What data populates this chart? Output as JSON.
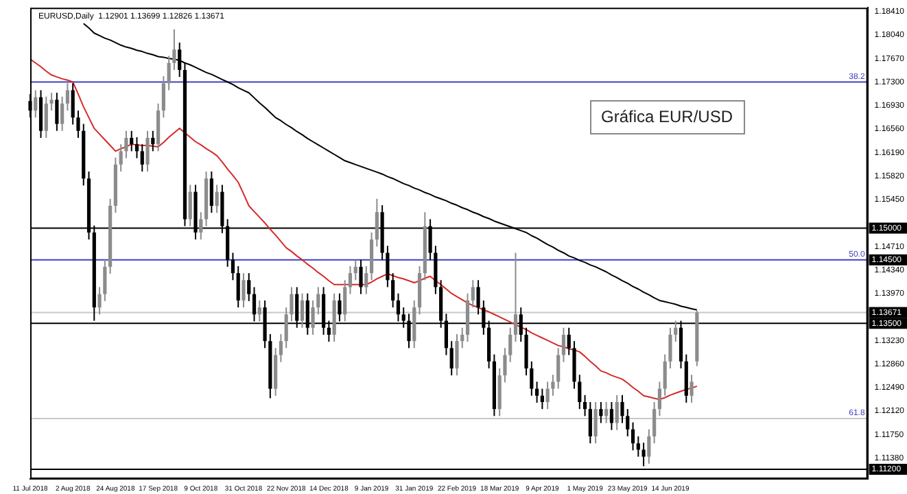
{
  "chart_data": {
    "type": "candlestick",
    "subtitle": "EURUSD,Daily  1.12901 1.13699 1.12826 1.13671",
    "annotations": [
      "Gráfica EUR/USD",
      {
        "text": "38.2",
        "y": 1.173
      },
      {
        "text": "50.0",
        "y": 1.145
      },
      {
        "text": "61.8",
        "y": 1.12
      }
    ],
    "colors": [
      "#000000",
      "#8c8c8c",
      "#000000",
      "#8c8c8c",
      "#8c8c8c",
      "#000000",
      "#8c8c8c",
      "#8c8c8c",
      "#000000",
      "#000000",
      "#000000",
      "#000000",
      "#000000",
      "#8c8c8c",
      "#8c8c8c",
      "#8c8c8c",
      "#8c8c8c",
      "#8c8c8c",
      "#8c8c8c",
      "#000000",
      "#000000",
      "#000000",
      "#8c8c8c",
      "#000000",
      "#8c8c8c",
      "#8c8c8c",
      "#8c8c8c",
      "#8c8c8c",
      "#000000",
      "#000000",
      "#8c8c8c",
      "#000000",
      "#8c8c8c",
      "#8c8c8c",
      "#000000",
      "#8c8c8c",
      "#000000",
      "#000000",
      "#000000",
      "#000000",
      "#8c8c8c",
      "#000000",
      "#000000",
      "#8c8c8c",
      "#000000",
      "#000000",
      "#8c8c8c",
      "#8c8c8c",
      "#8c8c8c",
      "#8c8c8c",
      "#000000",
      "#8c8c8c",
      "#000000",
      "#8c8c8c",
      "#8c8c8c",
      "#000000",
      "#000000",
      "#8c8c8c",
      "#000000",
      "#8c8c8c",
      "#8c8c8c",
      "#8c8c8c",
      "#000000",
      "#8c8c8c",
      "#8c8c8c",
      "#8c8c8c",
      "#000000",
      "#000000",
      "#000000",
      "#000000",
      "#000000",
      "#000000",
      "#8c8c8c",
      "#8c8c8c",
      "#8c8c8c",
      "#000000",
      "#000000",
      "#000000",
      "#000000",
      "#000000",
      "#8c8c8c",
      "#8c8c8c",
      "#8c8c8c",
      "#8c8c8c",
      "#000000",
      "#000000",
      "#000000",
      "#000000",
      "#8c8c8c",
      "#8c8c8c",
      "#8c8c8c",
      "#8c8c8c",
      "#000000",
      "#000000",
      "#000000",
      "#000000",
      "#000000",
      "#8c8c8c",
      "#8c8c8c",
      "#8c8c8c",
      "#8c8c8c",
      "#000000",
      "#000000",
      "#000000",
      "#000000",
      "#000000",
      "#8c8c8c",
      "#000000",
      "#8c8c8c",
      "#000000",
      "#8c8c8c",
      "#000000",
      "#000000",
      "#000000",
      "#000000",
      "#000000",
      "#8c8c8c",
      "#8c8c8c",
      "#8c8c8c",
      "#8c8c8c",
      "#8c8c8c",
      "#8c8c8c",
      "#000000",
      "#000000",
      "#8c8c8c",
      "#8c8c8c",
      null,
      null,
      null,
      null,
      null,
      null,
      null,
      null,
      null,
      null,
      null,
      null,
      null,
      null,
      null,
      null,
      null,
      null,
      null,
      null,
      null,
      null,
      null,
      null,
      null,
      null,
      null,
      null,
      null,
      null,
      null,
      null
    ],
    "categories": [
      "11 Jul 2018",
      null,
      null,
      null,
      null,
      null,
      null,
      null,
      "2 Aug 2018",
      null,
      null,
      null,
      null,
      null,
      null,
      null,
      "24 Aug 2018",
      null,
      null,
      null,
      null,
      null,
      null,
      null,
      "17 Sep 2018",
      null,
      null,
      null,
      null,
      null,
      null,
      null,
      "9 Oct 2018",
      null,
      null,
      null,
      null,
      null,
      null,
      null,
      "31 Oct 2018",
      null,
      null,
      null,
      null,
      null,
      null,
      null,
      "22 Nov 2018",
      null,
      null,
      null,
      null,
      null,
      null,
      null,
      "14 Dec 2018",
      null,
      null,
      null,
      null,
      null,
      null,
      null,
      "9 Jan 2019",
      null,
      null,
      null,
      null,
      null,
      null,
      null,
      "31 Jan 2019",
      null,
      null,
      null,
      null,
      null,
      null,
      null,
      "22 Feb 2019",
      null,
      null,
      null,
      null,
      null,
      null,
      null,
      "18 Mar 2019",
      null,
      null,
      null,
      null,
      null,
      null,
      null,
      "9 Apr 2019",
      null,
      null,
      null,
      null,
      null,
      null,
      null,
      "1 May 2019",
      null,
      null,
      null,
      null,
      null,
      null,
      null,
      "23 May 2019",
      null,
      null,
      null,
      null,
      null,
      null,
      null,
      "14 Jun 2019",
      null,
      null,
      null,
      null,
      null,
      null,
      null,
      null,
      null,
      null,
      null,
      null,
      null,
      null,
      null,
      null,
      null,
      null,
      null,
      null,
      null,
      null,
      null,
      null,
      null,
      null,
      null,
      null,
      null,
      null,
      null,
      null,
      null,
      null,
      null,
      null,
      null
    ],
    "ohlc": [
      [
        1.17,
        1.1711,
        1.1674,
        1.1685
      ],
      [
        1.1685,
        1.1717,
        1.1674,
        1.1706
      ],
      [
        1.1706,
        1.1717,
        1.1642,
        1.1653
      ],
      [
        1.1653,
        1.1707,
        1.1642,
        1.1696
      ],
      [
        1.1696,
        1.1713,
        1.1685,
        1.1702
      ],
      [
        1.1702,
        1.1713,
        1.1653,
        1.1664
      ],
      [
        1.1664,
        1.1707,
        1.1653,
        1.1696
      ],
      [
        1.1696,
        1.1728,
        1.1685,
        1.1717
      ],
      [
        1.1717,
        1.1728,
        1.1663,
        1.1674
      ],
      [
        1.1674,
        1.1685,
        1.1642,
        1.1653
      ],
      [
        1.1653,
        1.1664,
        1.1567,
        1.1578
      ],
      [
        1.1578,
        1.1589,
        1.1482,
        1.1493
      ],
      [
        1.1493,
        1.1504,
        1.1354,
        1.1375
      ],
      [
        1.1375,
        1.1407,
        1.1364,
        1.1396
      ],
      [
        1.1396,
        1.145,
        1.1385,
        1.1439
      ],
      [
        1.1439,
        1.1546,
        1.1428,
        1.1535
      ],
      [
        1.1535,
        1.1611,
        1.1524,
        1.16
      ],
      [
        1.16,
        1.1632,
        1.1589,
        1.1621
      ],
      [
        1.1621,
        1.1653,
        1.161,
        1.1642
      ],
      [
        1.1642,
        1.1653,
        1.1621,
        1.1632
      ],
      [
        1.1632,
        1.1643,
        1.161,
        1.1621
      ],
      [
        1.1621,
        1.1632,
        1.1589,
        1.16
      ],
      [
        1.16,
        1.1653,
        1.1589,
        1.1642
      ],
      [
        1.1642,
        1.1653,
        1.1621,
        1.1632
      ],
      [
        1.1632,
        1.1696,
        1.1621,
        1.1685
      ],
      [
        1.1685,
        1.1739,
        1.1674,
        1.1728
      ],
      [
        1.1728,
        1.1771,
        1.1717,
        1.176
      ],
      [
        1.176,
        1.1813,
        1.1749,
        1.1781
      ],
      [
        1.1781,
        1.1792,
        1.1738,
        1.1749
      ],
      [
        1.1749,
        1.176,
        1.1503,
        1.1514
      ],
      [
        1.1514,
        1.1568,
        1.1503,
        1.1557
      ],
      [
        1.1557,
        1.1568,
        1.1482,
        1.1493
      ],
      [
        1.1493,
        1.1525,
        1.1482,
        1.1514
      ],
      [
        1.1514,
        1.1589,
        1.1503,
        1.1578
      ],
      [
        1.1578,
        1.1589,
        1.1524,
        1.1535
      ],
      [
        1.1535,
        1.1568,
        1.1524,
        1.1557
      ],
      [
        1.1557,
        1.1568,
        1.1492,
        1.1503
      ],
      [
        1.1503,
        1.1514,
        1.1439,
        1.145
      ],
      [
        1.145,
        1.1461,
        1.1418,
        1.1429
      ],
      [
        1.1429,
        1.144,
        1.1375,
        1.1386
      ],
      [
        1.1386,
        1.1429,
        1.1375,
        1.1418
      ],
      [
        1.1418,
        1.1429,
        1.1385,
        1.1396
      ],
      [
        1.1396,
        1.1407,
        1.1353,
        1.1364
      ],
      [
        1.1364,
        1.1386,
        1.1353,
        1.1375
      ],
      [
        1.1375,
        1.1386,
        1.1311,
        1.1322
      ],
      [
        1.1322,
        1.1333,
        1.1232,
        1.1247
      ],
      [
        1.1247,
        1.1311,
        1.1236,
        1.13
      ],
      [
        1.13,
        1.1333,
        1.1289,
        1.1322
      ],
      [
        1.1322,
        1.1375,
        1.1311,
        1.1364
      ],
      [
        1.1364,
        1.1407,
        1.1353,
        1.1396
      ],
      [
        1.1396,
        1.1407,
        1.1343,
        1.1354
      ],
      [
        1.1354,
        1.1397,
        1.1343,
        1.1386
      ],
      [
        1.1386,
        1.1397,
        1.1332,
        1.1343
      ],
      [
        1.1343,
        1.1386,
        1.1332,
        1.1375
      ],
      [
        1.1375,
        1.1407,
        1.1364,
        1.1396
      ],
      [
        1.1396,
        1.1407,
        1.1332,
        1.1343
      ],
      [
        1.1343,
        1.1354,
        1.1321,
        1.1332
      ],
      [
        1.1332,
        1.1397,
        1.1321,
        1.1386
      ],
      [
        1.1386,
        1.1397,
        1.1353,
        1.1364
      ],
      [
        1.1364,
        1.1418,
        1.1353,
        1.1407
      ],
      [
        1.1407,
        1.144,
        1.1396,
        1.1429
      ],
      [
        1.1429,
        1.145,
        1.1418,
        1.1439
      ],
      [
        1.1439,
        1.145,
        1.1396,
        1.1407
      ],
      [
        1.1407,
        1.144,
        1.1396,
        1.1429
      ],
      [
        1.1429,
        1.1493,
        1.1418,
        1.1482
      ],
      [
        1.1482,
        1.1546,
        1.1471,
        1.1525
      ],
      [
        1.1525,
        1.1536,
        1.145,
        1.1461
      ],
      [
        1.1461,
        1.1472,
        1.1407,
        1.1418
      ],
      [
        1.1418,
        1.1429,
        1.1375,
        1.1386
      ],
      [
        1.1386,
        1.1397,
        1.1353,
        1.1364
      ],
      [
        1.1364,
        1.1375,
        1.1343,
        1.1354
      ],
      [
        1.1354,
        1.1365,
        1.1311,
        1.1322
      ],
      [
        1.1322,
        1.1386,
        1.1311,
        1.1375
      ],
      [
        1.1375,
        1.144,
        1.1364,
        1.1429
      ],
      [
        1.1429,
        1.1525,
        1.1418,
        1.1503
      ],
      [
        1.1503,
        1.1514,
        1.145,
        1.1461
      ],
      [
        1.1461,
        1.1472,
        1.1396,
        1.1407
      ],
      [
        1.1407,
        1.1418,
        1.1343,
        1.1354
      ],
      [
        1.1354,
        1.1365,
        1.13,
        1.1311
      ],
      [
        1.1311,
        1.1322,
        1.1268,
        1.1279
      ],
      [
        1.1279,
        1.1333,
        1.1268,
        1.1322
      ],
      [
        1.1322,
        1.1343,
        1.1311,
        1.1332
      ],
      [
        1.1332,
        1.1397,
        1.1321,
        1.1386
      ],
      [
        1.1386,
        1.1418,
        1.1375,
        1.1407
      ],
      [
        1.1407,
        1.1418,
        1.1364,
        1.1375
      ],
      [
        1.1375,
        1.1386,
        1.1332,
        1.1343
      ],
      [
        1.1343,
        1.1354,
        1.1279,
        1.129
      ],
      [
        1.129,
        1.1301,
        1.1204,
        1.1215
      ],
      [
        1.1215,
        1.1279,
        1.1204,
        1.1268
      ],
      [
        1.1268,
        1.1311,
        1.1257,
        1.13
      ],
      [
        1.13,
        1.1343,
        1.1289,
        1.1332
      ],
      [
        1.1332,
        1.1461,
        1.1321,
        1.1364
      ],
      [
        1.1364,
        1.1375,
        1.1321,
        1.1332
      ],
      [
        1.1332,
        1.1343,
        1.1268,
        1.1279
      ],
      [
        1.1279,
        1.129,
        1.1236,
        1.1247
      ],
      [
        1.1247,
        1.1258,
        1.1225,
        1.1236
      ],
      [
        1.1236,
        1.1247,
        1.1215,
        1.1226
      ],
      [
        1.1226,
        1.1258,
        1.1215,
        1.1247
      ],
      [
        1.1247,
        1.1269,
        1.1236,
        1.1258
      ],
      [
        1.1258,
        1.1311,
        1.1247,
        1.13
      ],
      [
        1.13,
        1.1343,
        1.1289,
        1.1332
      ],
      [
        1.1332,
        1.1343,
        1.13,
        1.1311
      ],
      [
        1.1311,
        1.1322,
        1.1247,
        1.1258
      ],
      [
        1.1258,
        1.1269,
        1.1215,
        1.1226
      ],
      [
        1.1226,
        1.1237,
        1.1204,
        1.1215
      ],
      [
        1.1215,
        1.1226,
        1.1161,
        1.1172
      ],
      [
        1.1172,
        1.1226,
        1.1161,
        1.1215
      ],
      [
        1.1215,
        1.1226,
        1.1193,
        1.1204
      ],
      [
        1.1204,
        1.1226,
        1.1193,
        1.1215
      ],
      [
        1.1215,
        1.1226,
        1.1182,
        1.1193
      ],
      [
        1.1193,
        1.1237,
        1.1182,
        1.1226
      ],
      [
        1.1226,
        1.1237,
        1.1193,
        1.1204
      ],
      [
        1.1204,
        1.1215,
        1.1172,
        1.1183
      ],
      [
        1.1183,
        1.1194,
        1.115,
        1.1161
      ],
      [
        1.1161,
        1.1172,
        1.114,
        1.1151
      ],
      [
        1.1151,
        1.1162,
        1.1125,
        1.114
      ],
      [
        1.114,
        1.1183,
        1.1129,
        1.1172
      ],
      [
        1.1172,
        1.1226,
        1.1161,
        1.1215
      ],
      [
        1.1215,
        1.1258,
        1.1204,
        1.1247
      ],
      [
        1.1247,
        1.1301,
        1.1236,
        1.129
      ],
      [
        1.129,
        1.1343,
        1.1279,
        1.1332
      ],
      [
        1.1332,
        1.1354,
        1.1321,
        1.1343
      ],
      [
        1.1343,
        1.1354,
        1.1279,
        1.129
      ],
      [
        1.129,
        1.1301,
        1.1225,
        1.1236
      ],
      [
        1.1236,
        1.1269,
        1.1225,
        1.1258
      ],
      [
        1.12901,
        1.13699,
        1.12826,
        1.13671
      ],
      null,
      null,
      null,
      null,
      null,
      null,
      null,
      null,
      null,
      null,
      null,
      null,
      null,
      null,
      null,
      null,
      null,
      null,
      null,
      null,
      null,
      null,
      null,
      null,
      null,
      null,
      null,
      null,
      null,
      null,
      null,
      null
    ],
    "series": [
      {
        "type": "line",
        "color": "#d42a2a",
        "values": [
          1.1766,
          1.176,
          1.1754,
          1.1747,
          1.1741,
          1.1738,
          1.1735,
          1.1733,
          1.173,
          1.1711,
          1.1691,
          1.1674,
          1.1657,
          1.1648,
          1.1639,
          1.163,
          1.1621,
          1.1625,
          1.1628,
          1.1632,
          1.1631,
          1.163,
          1.163,
          1.1629,
          1.1628,
          1.1635,
          1.1643,
          1.165,
          1.1657,
          1.165,
          1.1643,
          1.1636,
          1.1631,
          1.1625,
          1.162,
          1.1614,
          1.1604,
          1.1593,
          1.1583,
          1.1572,
          1.1554,
          1.1535,
          1.1526,
          1.1517,
          1.1508,
          1.1498,
          1.1489,
          1.1479,
          1.1469,
          1.1463,
          1.1456,
          1.145,
          1.1443,
          1.1437,
          1.143,
          1.1424,
          1.1417,
          1.1411,
          1.1411,
          1.1411,
          1.1411,
          1.1411,
          1.1411,
          1.1411,
          1.1415,
          1.142,
          1.1424,
          1.1428,
          1.1425,
          1.1422,
          1.142,
          1.1417,
          1.1414,
          1.1417,
          1.1421,
          1.1424,
          1.1417,
          1.1411,
          1.1404,
          1.1397,
          1.1392,
          1.1387,
          1.1382,
          1.1378,
          1.1375,
          1.1371,
          1.1368,
          1.1364,
          1.136,
          1.1356,
          1.1352,
          1.1348,
          1.1344,
          1.134,
          1.1335,
          1.1331,
          1.1327,
          1.1323,
          1.1319,
          1.1315,
          1.1313,
          1.131,
          1.1308,
          1.1305,
          1.1298,
          1.129,
          1.1283,
          1.1275,
          1.1272,
          1.1268,
          1.1265,
          1.1262,
          1.1256,
          1.1249,
          1.1243,
          1.1236,
          1.1234,
          1.1232,
          1.123,
          1.1233,
          1.1237,
          1.124,
          1.1243,
          1.1246,
          1.1248,
          1.1251,
          null,
          null,
          null,
          null,
          null,
          null,
          null,
          null,
          null,
          null,
          null,
          null,
          null,
          null,
          null,
          null,
          null,
          null,
          null,
          null,
          null,
          null,
          null,
          null,
          null,
          null,
          null,
          null,
          null,
          null,
          null,
          null
        ]
      },
      {
        "type": "line",
        "color": "#000000",
        "values": [
          null,
          null,
          null,
          null,
          null,
          null,
          null,
          null,
          null,
          null,
          1.1822,
          1.1815,
          1.1807,
          1.1803,
          1.1799,
          1.1796,
          1.1792,
          1.1788,
          1.1785,
          1.1783,
          1.178,
          1.1778,
          1.1775,
          1.1773,
          1.177,
          1.1769,
          1.1767,
          1.1766,
          1.1764,
          1.176,
          1.1757,
          1.1753,
          1.1749,
          1.1745,
          1.1742,
          1.1738,
          1.1734,
          1.173,
          1.1726,
          1.1721,
          1.1717,
          1.1713,
          1.1705,
          1.1697,
          1.169,
          1.1682,
          1.1674,
          1.1669,
          1.1663,
          1.1658,
          1.1652,
          1.1647,
          1.1641,
          1.1636,
          1.1631,
          1.1626,
          1.1621,
          1.1616,
          1.1611,
          1.1606,
          1.1603,
          1.16,
          1.1597,
          1.1594,
          1.1591,
          1.1588,
          1.1585,
          1.1581,
          1.1578,
          1.1574,
          1.157,
          1.1567,
          1.1563,
          1.156,
          1.1556,
          1.1553,
          1.1549,
          1.1546,
          1.1543,
          1.1539,
          1.1536,
          1.1532,
          1.1529,
          1.1525,
          1.1522,
          1.1518,
          1.1515,
          1.1511,
          1.1508,
          1.1505,
          1.1502,
          1.1499,
          1.1496,
          1.1493,
          1.1488,
          1.1484,
          1.1479,
          1.1474,
          1.147,
          1.1465,
          1.1461,
          1.1456,
          1.1453,
          1.1449,
          1.1446,
          1.1442,
          1.1439,
          1.1435,
          1.1431,
          1.1426,
          1.1422,
          1.1417,
          1.1413,
          1.1408,
          1.1404,
          1.1399,
          1.1395,
          1.139,
          1.1386,
          1.1384,
          1.1382,
          1.138,
          1.1377,
          1.1375,
          1.1373,
          1.1371,
          null,
          null,
          null,
          null,
          null,
          null,
          null,
          null,
          null,
          null,
          null,
          null,
          null,
          null,
          null,
          null,
          null,
          null,
          null,
          null,
          null,
          null,
          null,
          null,
          null,
          null,
          null,
          null,
          null,
          null,
          null,
          null
        ]
      }
    ],
    "ylim": [
      1.1105,
      1.1847
    ],
    "yticks": [
      {
        "value": 1.1841,
        "label": "1.18410"
      },
      {
        "value": 1.1804,
        "label": "1.18040"
      },
      {
        "value": 1.1767,
        "label": "1.17670"
      },
      {
        "value": 1.173,
        "label": "1.17300"
      },
      {
        "value": 1.1693,
        "label": "1.16930"
      },
      {
        "value": 1.1656,
        "label": "1.16560"
      },
      {
        "value": 1.1619,
        "label": "1.16190"
      },
      {
        "value": 1.1582,
        "label": "1.15820"
      },
      {
        "value": 1.1545,
        "label": "1.15450"
      },
      {
        "value": 1.1471,
        "label": "1.14710"
      },
      {
        "value": 1.1434,
        "label": "1.14340"
      },
      {
        "value": 1.1397,
        "label": "1.13970"
      },
      {
        "value": 1.1323,
        "label": "1.13230"
      },
      {
        "value": 1.1286,
        "label": "1.12860"
      },
      {
        "value": 1.1249,
        "label": "1.12490"
      },
      {
        "value": 1.1212,
        "label": "1.12120"
      },
      {
        "value": 1.1175,
        "label": "1.11750"
      },
      {
        "value": 1.1138,
        "label": "1.11380"
      }
    ],
    "ref_lines": [
      {
        "axis": "y",
        "value": 1.173,
        "color": "#4040c0"
      },
      {
        "axis": "y",
        "value": 1.15,
        "label": "1.15000",
        "color": "#000000"
      },
      {
        "axis": "y",
        "value": 1.145,
        "label": "1.14500",
        "color": "#4040c0"
      },
      {
        "axis": "y",
        "value": 1.13671,
        "label": "1.13671",
        "color": "#c8c8c8"
      },
      {
        "axis": "y",
        "value": 1.135,
        "label": "1.13500",
        "color": "#000000"
      },
      {
        "axis": "y",
        "value": 1.12,
        "color": "#c8c8c8"
      },
      {
        "axis": "y",
        "value": 1.112,
        "label": "1.11200",
        "color": "#000000"
      }
    ],
    "legend": false
  }
}
